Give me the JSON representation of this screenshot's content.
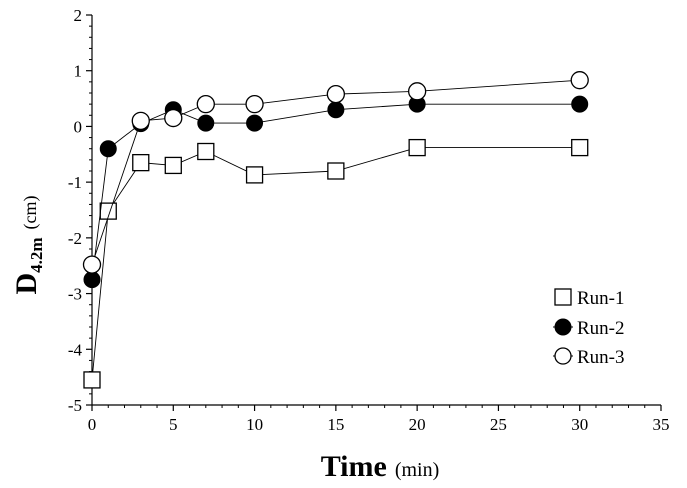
{
  "chart_data": {
    "type": "scatter",
    "title": "",
    "xlabel": "Time",
    "xlabel_unit": "(min)",
    "ylabel_main": "D",
    "ylabel_sub": "4.2m",
    "ylabel_unit": "(cm)",
    "xlim": [
      0,
      35
    ],
    "ylim": [
      -5,
      2
    ],
    "xticks": [
      0,
      5,
      10,
      15,
      20,
      25,
      30,
      35
    ],
    "yticks": [
      -5,
      -4,
      -3,
      -2,
      -1,
      0,
      1,
      2
    ],
    "xtick_labels": [
      "0",
      "5",
      "10",
      "15",
      "20",
      "25",
      "30",
      "35"
    ],
    "ytick_labels": [
      "-5",
      "-4",
      "-3",
      "-2",
      "-1",
      "0",
      "1",
      "2"
    ],
    "grid": false,
    "legend_position": "bottom-right",
    "series": [
      {
        "name": "Run-1",
        "marker": "open-square",
        "x": [
          0,
          1,
          3,
          5,
          7,
          10,
          15,
          20,
          30
        ],
        "y": [
          -4.55,
          -1.52,
          -0.65,
          -0.7,
          -0.45,
          -0.87,
          -0.8,
          -0.38,
          -0.38
        ]
      },
      {
        "name": "Run-2",
        "marker": "filled-circle",
        "x": [
          0,
          1,
          3,
          5,
          7,
          10,
          15,
          20,
          30
        ],
        "y": [
          -2.75,
          -0.4,
          0.05,
          0.3,
          0.06,
          0.06,
          0.3,
          0.4,
          0.4
        ]
      },
      {
        "name": "Run-3",
        "marker": "open-circle",
        "x": [
          0,
          3,
          5,
          7,
          10,
          15,
          20,
          30
        ],
        "y": [
          -2.48,
          0.1,
          0.15,
          0.4,
          0.4,
          0.58,
          0.63,
          0.83
        ]
      }
    ]
  }
}
